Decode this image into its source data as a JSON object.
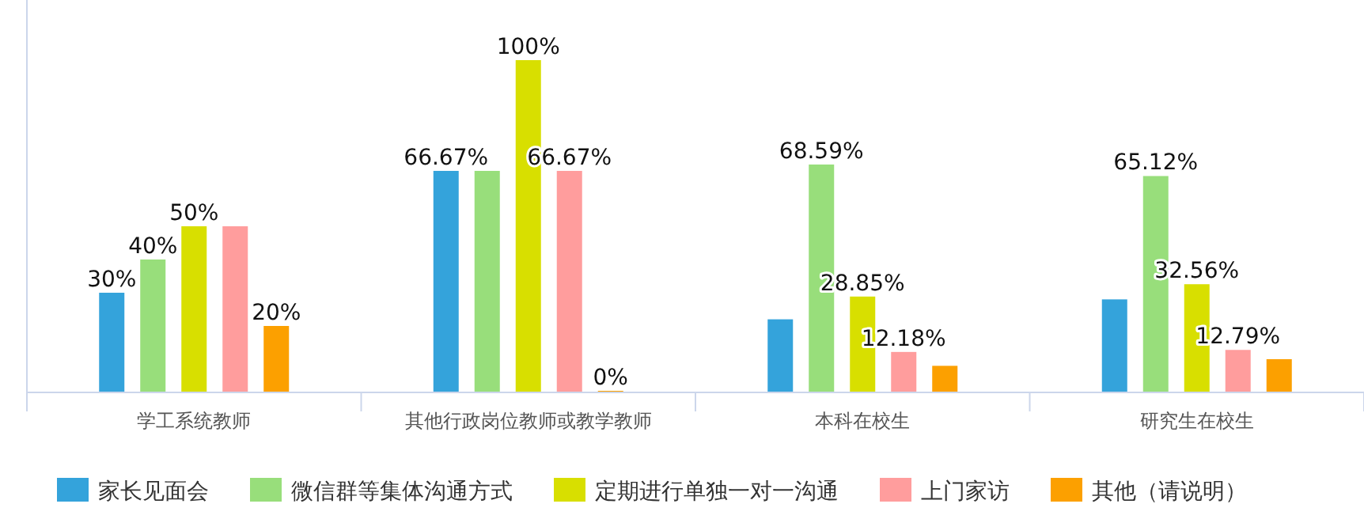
{
  "chart_data": {
    "type": "bar",
    "categories": [
      "学工系统教师",
      "其他行政岗位教师或教学教师",
      "本科在校生",
      "研究生在校生"
    ],
    "series": [
      {
        "name": "家长见面会",
        "color": "#34a3db",
        "values": [
          30,
          66.67,
          22,
          28
        ],
        "value_labels": [
          "30%",
          "66.67%",
          null,
          null
        ]
      },
      {
        "name": "微信群等集体沟通方式",
        "color": "#98de7b",
        "values": [
          40,
          66.67,
          68.59,
          65.12
        ],
        "value_labels": [
          "40%",
          null,
          "68.59%",
          "65.12%"
        ]
      },
      {
        "name": "定期进行单独一对一沟通",
        "color": "#d8df00",
        "values": [
          50,
          100,
          28.85,
          32.56
        ],
        "value_labels": [
          "50%",
          "100%",
          "28.85%",
          "32.56%"
        ]
      },
      {
        "name": "上门家访",
        "color": "#ff9d9d",
        "values": [
          50,
          66.67,
          12.18,
          12.79
        ],
        "value_labels": [
          null,
          "66.67%",
          "12.18%",
          "12.79%"
        ]
      },
      {
        "name": "其他（请说明）",
        "color": "#fca000",
        "values": [
          20,
          0,
          8,
          10
        ],
        "value_labels": [
          "20%",
          "0%",
          null,
          null
        ]
      }
    ],
    "legend": "bottom"
  }
}
